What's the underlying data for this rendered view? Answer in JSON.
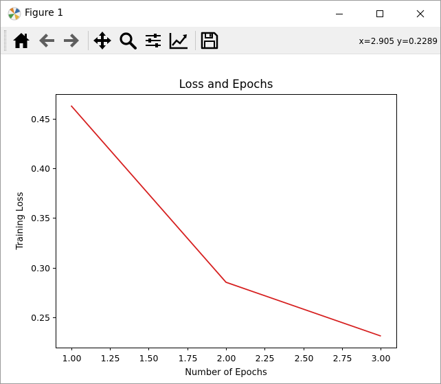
{
  "window": {
    "title": "Figure 1"
  },
  "toolbar": {
    "buttons": [
      {
        "name": "home",
        "icon": "home-icon"
      },
      {
        "name": "back",
        "icon": "arrow-left-icon"
      },
      {
        "name": "forward",
        "icon": "arrow-right-icon"
      },
      {
        "name": "pan",
        "icon": "move-icon"
      },
      {
        "name": "zoom",
        "icon": "magnifier-icon"
      },
      {
        "name": "subplots",
        "icon": "sliders-icon"
      },
      {
        "name": "edit-axes",
        "icon": "chart-line-icon"
      },
      {
        "name": "save",
        "icon": "floppy-disk-icon"
      }
    ],
    "coords": "x=2.905 y=0.2289"
  },
  "colors": {
    "line": "#d62020",
    "toolbar_bg": "#f0f0f0"
  },
  "chart_data": {
    "type": "line",
    "title": "Loss and Epochs",
    "xlabel": "Number of Epochs",
    "ylabel": "Training Loss",
    "x": [
      1.0,
      2.0,
      3.0
    ],
    "series": [
      {
        "values": [
          0.4632,
          0.2852,
          0.231
        ],
        "color": "#d62020"
      }
    ],
    "xlim": [
      0.9,
      3.1
    ],
    "ylim": [
      0.2194,
      0.4748
    ],
    "xticks": [
      1.0,
      1.25,
      1.5,
      1.75,
      2.0,
      2.25,
      2.5,
      2.75,
      3.0
    ],
    "xtick_labels": [
      "1.00",
      "1.25",
      "1.50",
      "1.75",
      "2.00",
      "2.25",
      "2.50",
      "2.75",
      "3.00"
    ],
    "yticks": [
      0.25,
      0.3,
      0.35,
      0.4,
      0.45
    ],
    "ytick_labels": [
      "0.25",
      "0.30",
      "0.35",
      "0.40",
      "0.45"
    ],
    "grid": false
  }
}
